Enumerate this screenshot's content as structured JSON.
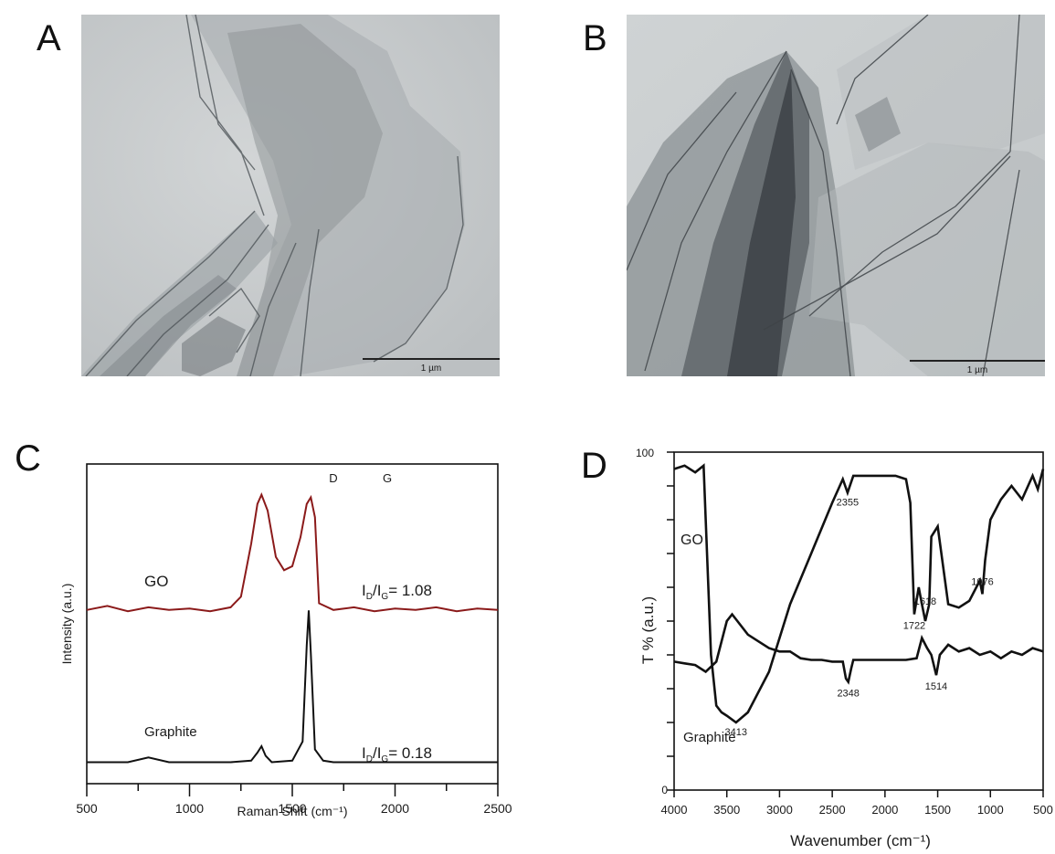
{
  "figure": {
    "panels": [
      {
        "letter": "A",
        "type": "tem-image",
        "scale_bar_label": "1 µm"
      },
      {
        "letter": "B",
        "type": "tem-image",
        "scale_bar_label": "1 µm"
      },
      {
        "letter": "C"
      },
      {
        "letter": "D"
      }
    ]
  },
  "chart_data": [
    {
      "panel": "C",
      "type": "line",
      "title": "",
      "xlabel": "Raman Shift (cm⁻¹)",
      "ylabel": "Intensity (a.u.)",
      "xlim": [
        500,
        2500
      ],
      "x_ticks": [
        500,
        1000,
        1500,
        2000,
        2500
      ],
      "grid": false,
      "peak_labels": [
        "D",
        "G"
      ],
      "series": [
        {
          "name": "GO",
          "color": "#8b1a1a",
          "ratio_label": "I",
          "ratio_sub": "D",
          "ratio_mid": "/I",
          "ratio_sub2": "G",
          "ratio_value": "= 1.08",
          "x": [
            500,
            600,
            700,
            800,
            900,
            1000,
            1100,
            1200,
            1250,
            1300,
            1330,
            1350,
            1380,
            1420,
            1460,
            1500,
            1540,
            1570,
            1590,
            1610,
            1630,
            1700,
            1800,
            1900,
            2000,
            2100,
            2200,
            2300,
            2400,
            2500
          ],
          "y": [
            0.05,
            0.08,
            0.04,
            0.07,
            0.05,
            0.06,
            0.04,
            0.07,
            0.15,
            0.55,
            0.85,
            0.92,
            0.8,
            0.45,
            0.35,
            0.38,
            0.6,
            0.85,
            0.9,
            0.75,
            0.1,
            0.05,
            0.07,
            0.04,
            0.06,
            0.05,
            0.07,
            0.04,
            0.06,
            0.05
          ]
        },
        {
          "name": "Graphite",
          "color": "#111111",
          "ratio_label": "I",
          "ratio_sub": "D",
          "ratio_mid": "/I",
          "ratio_sub2": "G",
          "ratio_value": "= 0.18",
          "x": [
            500,
            600,
            700,
            800,
            900,
            1000,
            1100,
            1200,
            1300,
            1330,
            1350,
            1370,
            1400,
            1500,
            1550,
            1570,
            1580,
            1590,
            1610,
            1650,
            1700,
            1800,
            1900,
            2000,
            2100,
            2200,
            2300,
            2400,
            2500
          ],
          "y": [
            0.02,
            0.02,
            0.02,
            0.05,
            0.02,
            0.02,
            0.02,
            0.02,
            0.03,
            0.08,
            0.12,
            0.06,
            0.02,
            0.03,
            0.15,
            0.75,
            0.97,
            0.7,
            0.1,
            0.03,
            0.02,
            0.02,
            0.02,
            0.02,
            0.02,
            0.02,
            0.02,
            0.02,
            0.02
          ]
        }
      ]
    },
    {
      "panel": "D",
      "type": "line",
      "title": "",
      "xlabel": "Wavenumber (cm⁻¹)",
      "ylabel": "T % (a.u.)",
      "xlim": [
        4000,
        500
      ],
      "x_ticks": [
        4000,
        3500,
        3000,
        2500,
        2000,
        1500,
        1000,
        500
      ],
      "ylim": [
        0,
        100
      ],
      "y_tick_labels": [
        "0",
        "100"
      ],
      "grid": false,
      "series": [
        {
          "name": "GO",
          "color": "#111111",
          "peak_labels": [
            "3413",
            "2355",
            "1722",
            "1618",
            "1076"
          ],
          "peaks": [
            3413,
            2355,
            1722,
            1618,
            1076
          ],
          "x": [
            4000,
            3900,
            3800,
            3720,
            3700,
            3650,
            3600,
            3550,
            3500,
            3413,
            3300,
            3100,
            2900,
            2700,
            2500,
            2400,
            2355,
            2300,
            2100,
            1900,
            1800,
            1760,
            1722,
            1680,
            1650,
            1618,
            1580,
            1560,
            1500,
            1400,
            1300,
            1200,
            1100,
            1076,
            1050,
            1000,
            900,
            800,
            700,
            600,
            550,
            500
          ],
          "y": [
            95,
            96,
            94,
            96,
            80,
            40,
            25,
            23,
            22,
            20,
            23,
            35,
            55,
            70,
            85,
            92,
            88,
            93,
            93,
            93,
            92,
            85,
            52,
            60,
            55,
            50,
            55,
            75,
            78,
            55,
            54,
            56,
            62,
            58,
            68,
            80,
            86,
            90,
            86,
            93,
            89,
            95
          ]
        },
        {
          "name": "Graphite",
          "color": "#111111",
          "peak_labels": [
            "2348",
            "1514"
          ],
          "peaks": [
            2348,
            1514
          ],
          "x": [
            4000,
            3900,
            3800,
            3700,
            3600,
            3500,
            3450,
            3400,
            3300,
            3200,
            3100,
            3000,
            2900,
            2800,
            2700,
            2600,
            2500,
            2400,
            2370,
            2348,
            2320,
            2300,
            2200,
            2000,
            1800,
            1700,
            1650,
            1600,
            1560,
            1514,
            1480,
            1400,
            1300,
            1200,
            1100,
            1000,
            900,
            800,
            700,
            600,
            500
          ],
          "y": [
            38,
            37.5,
            37,
            35,
            38,
            50,
            52,
            50,
            46,
            44,
            42,
            41,
            41,
            39,
            38.5,
            38.5,
            38,
            38,
            33,
            32,
            36,
            38.5,
            38.5,
            38.5,
            38.5,
            39,
            45,
            42,
            40,
            34,
            40,
            43,
            41,
            42,
            40,
            41,
            39,
            41,
            40,
            42,
            41
          ]
        }
      ]
    }
  ]
}
